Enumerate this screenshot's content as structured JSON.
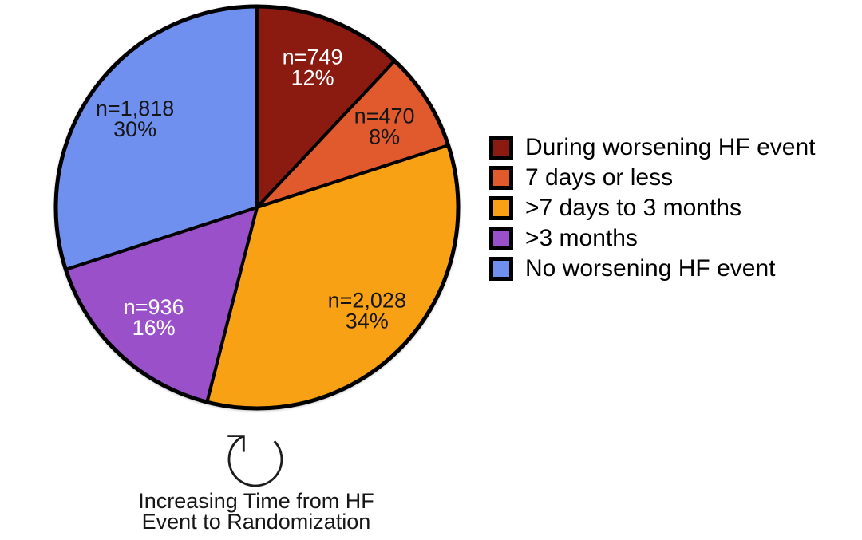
{
  "chart_data": {
    "type": "pie",
    "title": "",
    "direction": "clockwise",
    "start_angle_deg": 0,
    "legend_position": "right",
    "outline_color": "#000000",
    "slices": [
      {
        "label": "During worsening HF event",
        "n_label": "n=749",
        "pct": 12,
        "pct_label": "12%",
        "color": "#8B1A11",
        "text_color": "#FFFFFF"
      },
      {
        "label": "7 days or less",
        "n_label": "n=470",
        "pct": 8,
        "pct_label": "8%",
        "color": "#E05A2D",
        "text_color": "#161616"
      },
      {
        "label": ">7 days to 3 months",
        "n_label": "n=2,028",
        "pct": 34,
        "pct_label": "34%",
        "color": "#F9A114",
        "text_color": "#161616"
      },
      {
        "label": ">3 months",
        "n_label": "n=936",
        "pct": 16,
        "pct_label": "16%",
        "color": "#9950C8",
        "text_color": "#FFFFFF"
      },
      {
        "label": "No worsening HF event",
        "n_label": "n=1,818",
        "pct": 30,
        "pct_label": "30%",
        "color": "#7090F0",
        "text_color": "#161616"
      }
    ],
    "annotation": {
      "icon": "clockwise-rotation-arrow",
      "lines": [
        "Increasing Time from HF",
        "Event to Randomization"
      ]
    }
  }
}
